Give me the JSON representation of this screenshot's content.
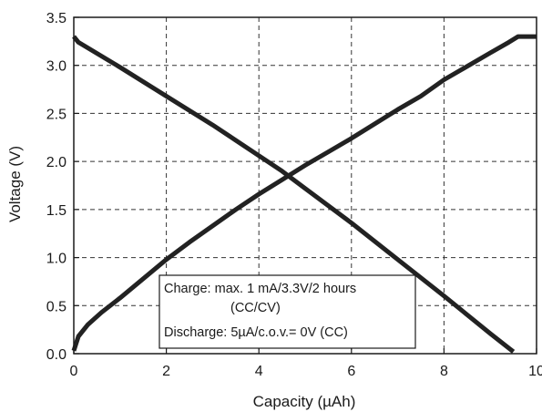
{
  "chart_data": {
    "type": "line",
    "title": "",
    "xlabel": "Capacity (µAh)",
    "ylabel": "Voltage (V)",
    "xlim": [
      0,
      10
    ],
    "ylim": [
      0,
      3.5
    ],
    "x_ticks": [
      "0",
      "2",
      "4",
      "6",
      "8",
      "10"
    ],
    "y_ticks": [
      "0.0",
      "0.5",
      "1.0",
      "1.5",
      "2.0",
      "2.5",
      "3.0",
      "3.5"
    ],
    "grid": true,
    "grid_style": "dashed",
    "series": [
      {
        "x": [
          0.0,
          0.1,
          0.3,
          0.6,
          1.0,
          1.5,
          2.0,
          2.5,
          3.0,
          3.5,
          4.0,
          4.5,
          5.0,
          5.5,
          6.0,
          6.5,
          7.0,
          7.5,
          8.0,
          8.5,
          9.0,
          9.4,
          9.6,
          10.0
        ],
        "y": [
          0.03,
          0.18,
          0.3,
          0.43,
          0.58,
          0.78,
          0.98,
          1.16,
          1.33,
          1.5,
          1.66,
          1.81,
          1.96,
          2.1,
          2.24,
          2.39,
          2.54,
          2.68,
          2.85,
          2.99,
          3.13,
          3.24,
          3.3,
          3.3
        ],
        "color": "#222222"
      },
      {
        "x": [
          0.0,
          0.1,
          1.0,
          2.0,
          3.0,
          4.0,
          4.5,
          5.0,
          6.0,
          7.0,
          8.0,
          9.0,
          9.5
        ],
        "y": [
          3.3,
          3.24,
          2.98,
          2.68,
          2.38,
          2.06,
          1.9,
          1.72,
          1.36,
          0.98,
          0.6,
          0.21,
          0.02
        ],
        "color": "#222222"
      }
    ],
    "annotations": [
      "Charge: max. 1 mA/3.3V/2 hours",
      "(CC/CV)",
      "Discharge: 5µA/c.o.v.= 0V (CC)"
    ]
  }
}
